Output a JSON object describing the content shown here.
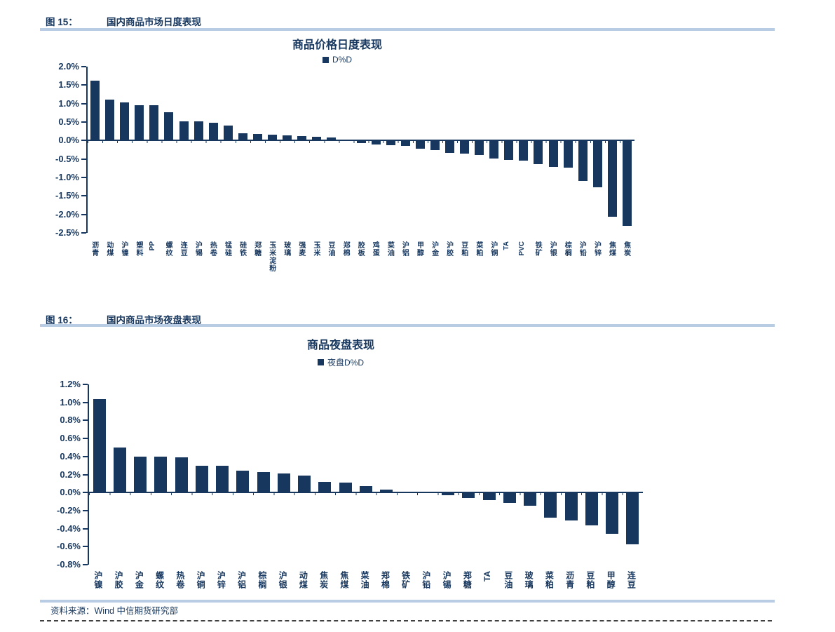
{
  "page": {
    "fig15_label": "图 15：",
    "fig15_title": "国内商品市场日度表现",
    "fig16_label": "图 16：",
    "fig16_title": "国内商品市场夜盘表现",
    "source": "资料来源：Wind 中信期货研究部"
  },
  "colors": {
    "navy": "#17375E",
    "heading_rule": "#B8CCE4",
    "background": "#FFFFFF"
  },
  "chart_data": [
    {
      "type": "bar",
      "title": "商品价格日度表现",
      "legend": "D%D",
      "legend_position": "top-center",
      "grid": false,
      "unit": "%",
      "ylim": [
        -2.5,
        2.0
      ],
      "yticks": [
        "2.0%",
        "1.5%",
        "1.0%",
        "0.5%",
        "0.0%",
        "-0.5%",
        "-1.0%",
        "-1.5%",
        "-2.0%",
        "-2.5%"
      ],
      "categories": [
        "沥青",
        "动煤",
        "沪镍",
        "塑料",
        "PP",
        "螺纹",
        "连豆",
        "沪锡",
        "热卷",
        "锰硅",
        "硅铁",
        "郑糖",
        "玉米淀粉",
        "玻璃",
        "强麦",
        "玉米",
        "豆油",
        "郑棉",
        "胶板",
        "鸡蛋",
        "菜油",
        "沪铝",
        "甲醇",
        "沪金",
        "沪胶",
        "豆粕",
        "菜粕",
        "沪铜",
        "TA",
        "PVC",
        "铁矿",
        "沪银",
        "棕榈",
        "沪铅",
        "沪锌",
        "焦煤",
        "焦炭"
      ],
      "values": [
        1.62,
        1.1,
        1.03,
        0.96,
        0.96,
        0.76,
        0.52,
        0.52,
        0.49,
        0.41,
        0.2,
        0.18,
        0.15,
        0.14,
        0.12,
        0.1,
        0.08,
        0.02,
        -0.05,
        -0.09,
        -0.11,
        -0.13,
        -0.21,
        -0.25,
        -0.32,
        -0.34,
        -0.38,
        -0.46,
        -0.51,
        -0.52,
        -0.62,
        -0.7,
        -0.72,
        -1.07,
        -1.25,
        -2.05,
        -2.3
      ]
    },
    {
      "type": "bar",
      "title": "商品夜盘表现",
      "legend": "夜盘D%D",
      "legend_position": "top-center",
      "grid": false,
      "unit": "%",
      "ylim": [
        -0.8,
        1.2
      ],
      "yticks": [
        "1.2%",
        "1.0%",
        "0.8%",
        "0.6%",
        "0.4%",
        "0.2%",
        "0.0%",
        "-0.2%",
        "-0.4%",
        "-0.6%",
        "-0.8%"
      ],
      "categories": [
        "沪镍",
        "沪胶",
        "沪金",
        "螺纹",
        "热卷",
        "沪铜",
        "沪锌",
        "沪铝",
        "棕榈",
        "沪银",
        "动煤",
        "焦炭",
        "焦煤",
        "菜油",
        "郑棉",
        "铁矿",
        "沪铅",
        "沪锡",
        "郑糖",
        "TA",
        "豆油",
        "玻璃",
        "菜粕",
        "沥青",
        "豆粕",
        "甲醇",
        "连豆"
      ],
      "values": [
        1.04,
        0.5,
        0.4,
        0.4,
        0.39,
        0.3,
        0.3,
        0.24,
        0.23,
        0.21,
        0.19,
        0.12,
        0.11,
        0.07,
        0.03,
        0.01,
        0.0,
        -0.02,
        -0.05,
        -0.08,
        -0.11,
        -0.14,
        -0.27,
        -0.3,
        -0.36,
        -0.45,
        -0.57
      ]
    }
  ]
}
